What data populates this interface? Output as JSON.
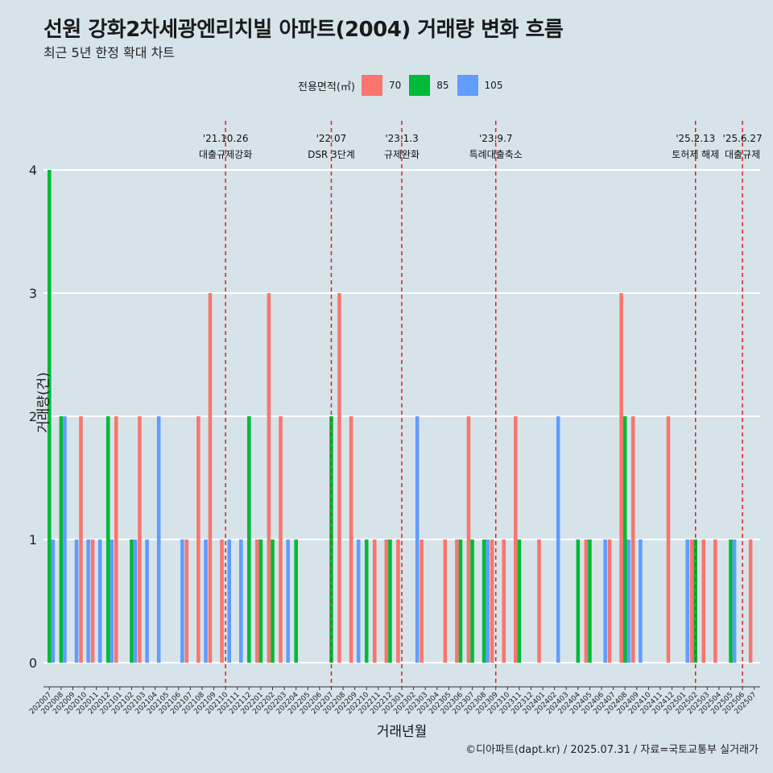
{
  "header": {
    "title": "선원 강화2차세광엔리치빌 아파트(2004) 거래량 변화 흐름",
    "subtitle": "최근 5년 한정 확대 차트"
  },
  "caption": "©디아파트(dapt.kr) / 2025.07.31 / 자료=국토교통부 실거래가",
  "legend": {
    "title": "전용면적(㎡)",
    "items": [
      {
        "label": "70",
        "color": "#f8766d"
      },
      {
        "label": "85",
        "color": "#00ba38"
      },
      {
        "label": "105",
        "color": "#619cff"
      }
    ]
  },
  "chart_data": {
    "type": "bar",
    "xlabel": "거래년월",
    "ylabel": "거래량(건)",
    "ylim": [
      0,
      4
    ],
    "yticks": [
      0,
      1,
      2,
      3,
      4
    ],
    "grid": true,
    "legend_position": "top",
    "categories": [
      "202007",
      "202008",
      "202009",
      "202010",
      "202011",
      "202012",
      "202101",
      "202102",
      "202103",
      "202104",
      "202105",
      "202106",
      "202107",
      "202108",
      "202109",
      "202110",
      "202111",
      "202112",
      "202201",
      "202202",
      "202203",
      "202204",
      "202205",
      "202206",
      "202207",
      "202208",
      "202209",
      "202210",
      "202211",
      "202212",
      "202301",
      "202302",
      "202303",
      "202304",
      "202305",
      "202306",
      "202307",
      "202308",
      "202309",
      "202310",
      "202311",
      "202312",
      "202401",
      "202402",
      "202403",
      "202404",
      "202405",
      "202406",
      "202407",
      "202408",
      "202409",
      "202410",
      "202411",
      "202412",
      "202501",
      "202502",
      "202503",
      "202504",
      "202505",
      "202506",
      "202507"
    ],
    "series": [
      {
        "name": "70",
        "color": "#f8766d",
        "values": [
          0,
          0,
          0,
          2,
          1,
          0,
          2,
          0,
          2,
          0,
          0,
          0,
          1,
          2,
          3,
          1,
          0,
          0,
          1,
          3,
          2,
          0,
          0,
          0,
          0,
          3,
          2,
          0,
          1,
          1,
          1,
          0,
          1,
          0,
          1,
          1,
          2,
          0,
          1,
          1,
          2,
          0,
          1,
          0,
          0,
          0,
          1,
          0,
          1,
          3,
          2,
          0,
          0,
          2,
          0,
          1,
          1,
          1,
          0,
          0,
          1
        ]
      },
      {
        "name": "85",
        "color": "#00ba38",
        "values": [
          4,
          2,
          0,
          0,
          0,
          2,
          0,
          1,
          0,
          0,
          0,
          0,
          0,
          0,
          0,
          0,
          0,
          2,
          1,
          1,
          0,
          1,
          0,
          0,
          2,
          0,
          0,
          1,
          0,
          1,
          0,
          0,
          0,
          0,
          0,
          1,
          1,
          1,
          0,
          0,
          1,
          0,
          0,
          0,
          0,
          1,
          1,
          0,
          0,
          2,
          0,
          0,
          0,
          0,
          0,
          1,
          0,
          0,
          1,
          0,
          0
        ]
      },
      {
        "name": "105",
        "color": "#619cff",
        "values": [
          1,
          2,
          1,
          1,
          1,
          1,
          0,
          1,
          1,
          2,
          0,
          1,
          0,
          1,
          0,
          1,
          1,
          0,
          0,
          0,
          1,
          0,
          0,
          0,
          0,
          0,
          1,
          0,
          0,
          0,
          0,
          2,
          0,
          0,
          0,
          0,
          0,
          1,
          0,
          0,
          0,
          0,
          0,
          2,
          0,
          0,
          0,
          1,
          0,
          1,
          1,
          0,
          0,
          0,
          1,
          0,
          0,
          0,
          1,
          0,
          0
        ]
      }
    ],
    "annotations": [
      {
        "at": "202110",
        "date": "'21.10.26",
        "label": "대출규제강화"
      },
      {
        "at": "202207",
        "date": "'22.07",
        "label": "DSR 3단계"
      },
      {
        "at": "202301",
        "date": "'23.1.3",
        "label": "규제완화"
      },
      {
        "at": "202309",
        "date": "'23.9.7",
        "label": "특례대출축소"
      },
      {
        "at": "202502",
        "date": "'25.2.13",
        "label": "토허제 해제"
      },
      {
        "at": "202506",
        "date": "'25.6.27",
        "label": "대출규제"
      }
    ]
  }
}
